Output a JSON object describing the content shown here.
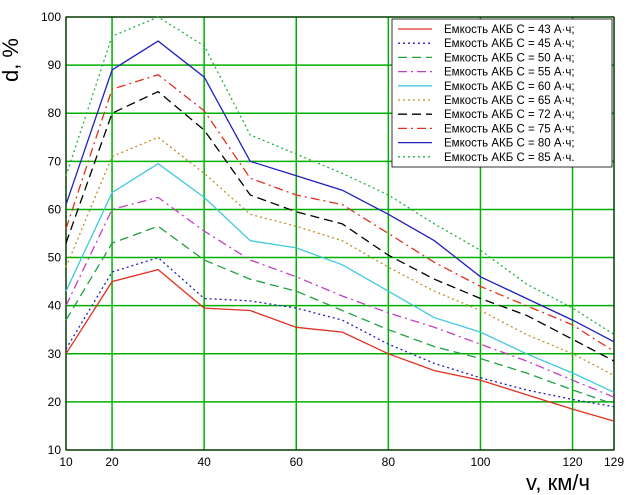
{
  "chart_data": {
    "type": "line",
    "title": "",
    "xlabel": "v, км/ч",
    "ylabel": "d, %",
    "xlim": [
      10,
      129
    ],
    "ylim": [
      10,
      100
    ],
    "x_ticks": [
      10,
      20,
      40,
      60,
      80,
      100,
      120,
      129
    ],
    "y_ticks": [
      10,
      20,
      30,
      40,
      50,
      60,
      70,
      80,
      90,
      100
    ],
    "grid": true,
    "grid_color": "#00b000",
    "legend_position": "top-right",
    "x": [
      10,
      20,
      30,
      40,
      50,
      60,
      70,
      80,
      90,
      100,
      110,
      120,
      129
    ],
    "series": [
      {
        "name": "Емкость АКБ С = 43 А·ч;",
        "color": "#e03020",
        "dash": "solid",
        "values": [
          30,
          45,
          47.5,
          39.5,
          39,
          35.5,
          34.5,
          30,
          26.5,
          24.5,
          21.5,
          18.5,
          16
        ]
      },
      {
        "name": "Емкость АКБ С = 45 А·ч;",
        "color": "#2020c0",
        "dash": "dot",
        "values": [
          31,
          47,
          50,
          41.5,
          41,
          39.5,
          37,
          32,
          28,
          25,
          22.5,
          20.5,
          19
        ]
      },
      {
        "name": "Емкость АКБ С = 50 А·ч;",
        "color": "#20a040",
        "dash": "dash",
        "values": [
          37,
          53,
          56.5,
          49.5,
          45.5,
          43,
          39,
          35,
          31.5,
          29,
          26,
          22.5,
          19.5
        ]
      },
      {
        "name": "Емкость АКБ С = 55 А·ч;",
        "color": "#c040c0",
        "dash": "dashdot",
        "values": [
          40,
          60,
          62.5,
          55.5,
          49.5,
          46,
          42,
          38.5,
          35.5,
          32,
          28.5,
          24.5,
          21
        ]
      },
      {
        "name": "Емкость АКБ С = 60 А·ч;",
        "color": "#40c8e0",
        "dash": "solid",
        "values": [
          43,
          63.5,
          69.5,
          62.5,
          53.5,
          52,
          48.5,
          43,
          37.5,
          34.5,
          30,
          26,
          22
        ]
      },
      {
        "name": "Емкость АКБ С = 65 А·ч;",
        "color": "#c09020",
        "dash": "dot",
        "values": [
          48,
          71,
          75,
          67.5,
          59,
          56.5,
          53.5,
          48,
          43,
          39,
          34,
          30,
          25.5
        ]
      },
      {
        "name": "Емкость АКБ С = 72 А·ч;",
        "color": "#000000",
        "dash": "dash",
        "values": [
          53,
          80,
          84.5,
          76.5,
          63,
          59.5,
          57,
          50.5,
          45.5,
          41.5,
          38,
          33,
          28.5
        ]
      },
      {
        "name": "Емкость АКБ С = 75 А·ч;",
        "color": "#e03020",
        "dash": "dashdot",
        "values": [
          56,
          85,
          88,
          80.5,
          66.5,
          63,
          61,
          55,
          49,
          44,
          40,
          36,
          30.5
        ]
      },
      {
        "name": "Емкость АКБ С = 80 А·ч;",
        "color": "#2020c0",
        "dash": "solid",
        "values": [
          61,
          89,
          95,
          87.5,
          70,
          67,
          64,
          59,
          53.5,
          46,
          41.5,
          37,
          32.5
        ]
      },
      {
        "name": "Емкость АКБ С = 85 А·ч.",
        "color": "#20b040",
        "dash": "dot",
        "values": [
          67,
          96,
          100,
          94,
          75.5,
          71.5,
          67.5,
          63,
          57,
          51.5,
          44.5,
          39.5,
          34
        ]
      }
    ]
  }
}
